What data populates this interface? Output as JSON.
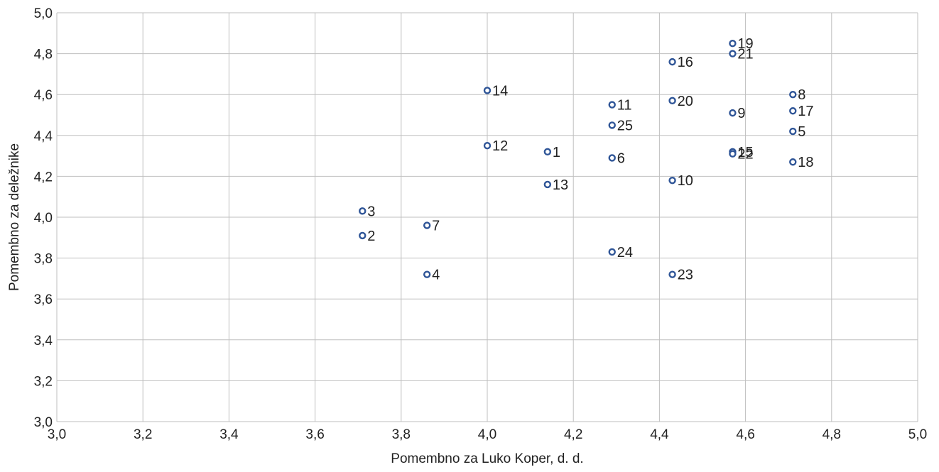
{
  "chart_data": {
    "type": "scatter",
    "title": "",
    "xlabel": "Pomembno za Luko Koper, d. d.",
    "ylabel": "Pomembno za deležnike",
    "xlim": [
      3.0,
      5.0
    ],
    "ylim": [
      3.0,
      5.0
    ],
    "x_ticks": [
      "3,0",
      "3,2",
      "3,4",
      "3,6",
      "3,8",
      "4,0",
      "4,2",
      "4,4",
      "4,6",
      "4,8",
      "5,0"
    ],
    "y_ticks": [
      "3,0",
      "3,2",
      "3,4",
      "3,6",
      "3,8",
      "4,0",
      "4,2",
      "4,4",
      "4,6",
      "4,8",
      "5,0"
    ],
    "grid": true,
    "legend": "none",
    "marker_color": "#2f5597",
    "points": [
      {
        "label": "1",
        "x": 4.14,
        "y": 4.32
      },
      {
        "label": "2",
        "x": 3.71,
        "y": 3.91
      },
      {
        "label": "3",
        "x": 3.71,
        "y": 4.03
      },
      {
        "label": "4",
        "x": 3.86,
        "y": 3.72
      },
      {
        "label": "5",
        "x": 4.71,
        "y": 4.42
      },
      {
        "label": "6",
        "x": 4.29,
        "y": 4.29
      },
      {
        "label": "7",
        "x": 3.86,
        "y": 3.96
      },
      {
        "label": "8",
        "x": 4.71,
        "y": 4.6
      },
      {
        "label": "9",
        "x": 4.57,
        "y": 4.51
      },
      {
        "label": "10",
        "x": 4.43,
        "y": 4.18
      },
      {
        "label": "11",
        "x": 4.29,
        "y": 4.55
      },
      {
        "label": "12",
        "x": 4.0,
        "y": 4.35
      },
      {
        "label": "13",
        "x": 4.14,
        "y": 4.16
      },
      {
        "label": "14",
        "x": 4.0,
        "y": 4.62
      },
      {
        "label": "15",
        "x": 4.57,
        "y": 4.32
      },
      {
        "label": "16",
        "x": 4.43,
        "y": 4.76
      },
      {
        "label": "17",
        "x": 4.71,
        "y": 4.52
      },
      {
        "label": "18",
        "x": 4.71,
        "y": 4.27
      },
      {
        "label": "19",
        "x": 4.57,
        "y": 4.85
      },
      {
        "label": "20",
        "x": 4.43,
        "y": 4.57
      },
      {
        "label": "21",
        "x": 4.57,
        "y": 4.8
      },
      {
        "label": "22",
        "x": 4.57,
        "y": 4.31
      },
      {
        "label": "23",
        "x": 4.43,
        "y": 3.72
      },
      {
        "label": "24",
        "x": 4.29,
        "y": 3.83
      },
      {
        "label": "25",
        "x": 4.29,
        "y": 4.45
      }
    ]
  }
}
